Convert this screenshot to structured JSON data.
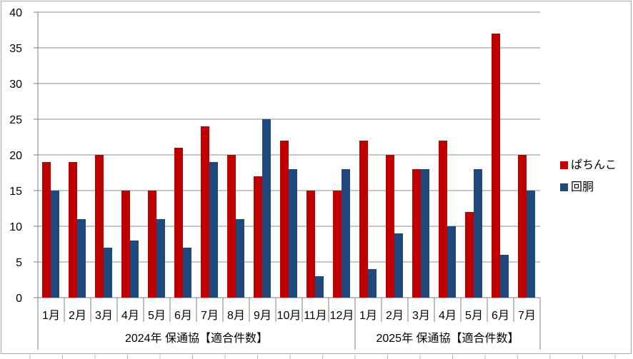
{
  "chart_data": {
    "type": "bar",
    "title": "",
    "xlabel": "",
    "ylabel": "",
    "ylim": [
      0,
      40
    ],
    "ytick_interval": 5,
    "ytick_labels": [
      "0",
      "5",
      "10",
      "15",
      "20",
      "25",
      "30",
      "35",
      "40"
    ],
    "grid": true,
    "legend_position": "right",
    "groups": [
      {
        "label": "2024年 保通協【適合件数】",
        "categories": [
          "1月",
          "2月",
          "3月",
          "4月",
          "5月",
          "6月",
          "7月",
          "8月",
          "9月",
          "10月",
          "11月",
          "12月"
        ]
      },
      {
        "label": "2025年 保通協【適合件数】",
        "categories": [
          "1月",
          "2月",
          "3月",
          "4月",
          "5月",
          "6月",
          "7月"
        ]
      }
    ],
    "series": [
      {
        "name": "ぱちんこ",
        "color": "#C00000",
        "values": [
          [
            19,
            19,
            20,
            15,
            15,
            21,
            24,
            20,
            17,
            22,
            15,
            15
          ],
          [
            22,
            20,
            18,
            22,
            12,
            37,
            20
          ]
        ]
      },
      {
        "name": "回胴",
        "color": "#1F497D",
        "values": [
          [
            15,
            11,
            7,
            8,
            11,
            7,
            19,
            11,
            25,
            18,
            3,
            18
          ],
          [
            4,
            9,
            18,
            10,
            18,
            6,
            15
          ]
        ]
      }
    ],
    "colors": {
      "gridline": "#8C8C8C",
      "axis": "#7F7F7F",
      "frame_border": "#A6A6A6",
      "text": "#000000",
      "background": "#FFFFFF"
    }
  }
}
